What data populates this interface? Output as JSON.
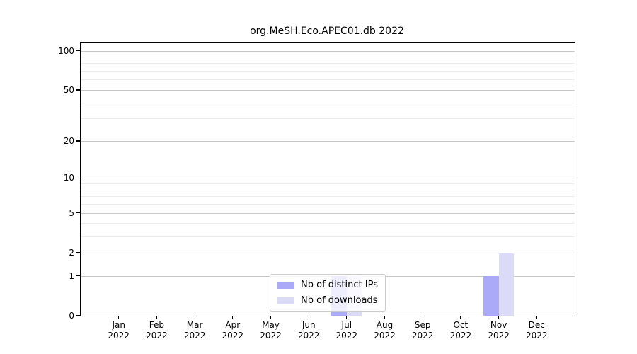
{
  "chart_data": {
    "type": "bar",
    "title": "org.MeSH.Eco.APEC01.db 2022",
    "categories": [
      "Jan 2022",
      "Feb 2022",
      "Mar 2022",
      "Apr 2022",
      "May 2022",
      "Jun 2022",
      "Jul 2022",
      "Aug 2022",
      "Sep 2022",
      "Oct 2022",
      "Nov 2022",
      "Dec 2022"
    ],
    "series": [
      {
        "name": "Nb of distinct IPs",
        "color": "#aaaaf8",
        "values": [
          0,
          0,
          0,
          0,
          0,
          0,
          1,
          0,
          0,
          0,
          1,
          0
        ]
      },
      {
        "name": "Nb of downloads",
        "color": "#dbdbf7",
        "values": [
          0,
          0,
          0,
          0,
          0,
          0,
          1,
          0,
          0,
          0,
          2,
          0
        ]
      }
    ],
    "xlabel": "",
    "ylabel": "",
    "yscale": "log1p",
    "ylim": [
      0,
      114
    ],
    "yticks": [
      0,
      1,
      2,
      5,
      10,
      20,
      50,
      100
    ],
    "minor_gridlines": [
      3,
      4,
      6,
      7,
      8,
      9,
      30,
      40,
      60,
      70,
      80,
      90
    ],
    "grid": true,
    "legend_position": "lower center inside",
    "background": "#ffffff",
    "grid_major_color": "#c9c9c9",
    "grid_minor_color": "#ededed",
    "axis_color": "#000000"
  }
}
